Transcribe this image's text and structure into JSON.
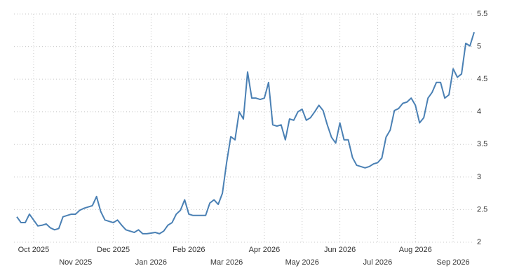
{
  "chart_data": {
    "type": "line",
    "categories": [
      null,
      null,
      null,
      null,
      "Oct 2025",
      null,
      null,
      null,
      null,
      null,
      null,
      null,
      null,
      null,
      "Nov 2025",
      null,
      null,
      null,
      null,
      null,
      null,
      null,
      null,
      "Dec 2025",
      null,
      null,
      null,
      null,
      null,
      null,
      null,
      null,
      "Jan 2026",
      null,
      null,
      null,
      null,
      null,
      null,
      null,
      null,
      "Feb 2026",
      null,
      null,
      null,
      null,
      null,
      null,
      null,
      null,
      "Mar 2026",
      null,
      null,
      null,
      null,
      null,
      null,
      null,
      null,
      "Apr 2026",
      null,
      null,
      null,
      null,
      null,
      null,
      null,
      null,
      "May 2026",
      null,
      null,
      null,
      null,
      null,
      null,
      null,
      null,
      "Jun 2026",
      null,
      null,
      null,
      null,
      null,
      null,
      null,
      null,
      "Jul 2026",
      null,
      null,
      null,
      null,
      null,
      null,
      null,
      null,
      "Aug 2026",
      null,
      null,
      null,
      null,
      null,
      null,
      null,
      null,
      "Sep 2026",
      null,
      null,
      null,
      null,
      null
    ],
    "values": [
      2.39,
      2.3,
      2.3,
      2.43,
      2.34,
      2.25,
      2.26,
      2.28,
      2.22,
      2.19,
      2.21,
      2.39,
      2.41,
      2.43,
      2.43,
      2.49,
      2.52,
      2.54,
      2.56,
      2.7,
      2.47,
      2.34,
      2.32,
      2.3,
      2.34,
      2.26,
      2.19,
      2.17,
      2.15,
      2.19,
      2.13,
      2.13,
      2.14,
      2.15,
      2.13,
      2.17,
      2.26,
      2.3,
      2.43,
      2.49,
      2.65,
      2.43,
      2.41,
      2.41,
      2.41,
      2.41,
      2.6,
      2.65,
      2.58,
      2.75,
      3.22,
      3.62,
      3.57,
      4.0,
      3.89,
      4.61,
      4.21,
      4.21,
      4.19,
      4.21,
      4.45,
      3.8,
      3.78,
      3.8,
      3.57,
      3.89,
      3.87,
      4.0,
      4.04,
      3.87,
      3.91,
      4.0,
      4.1,
      4.02,
      3.8,
      3.61,
      3.52,
      3.83,
      3.57,
      3.57,
      3.3,
      3.18,
      3.16,
      3.14,
      3.16,
      3.2,
      3.22,
      3.29,
      3.61,
      3.72,
      4.02,
      4.05,
      4.13,
      4.15,
      4.21,
      4.1,
      3.83,
      3.91,
      4.21,
      4.3,
      4.45,
      4.45,
      4.21,
      4.26,
      4.66,
      4.53,
      4.58,
      5.05,
      5.01,
      5.22
    ],
    "color": "#4a80b4",
    "ylim": [
      2,
      5.5
    ],
    "yticks": [
      2,
      2.5,
      3,
      3.5,
      4,
      4.5,
      5,
      5.5
    ],
    "grid": true
  }
}
